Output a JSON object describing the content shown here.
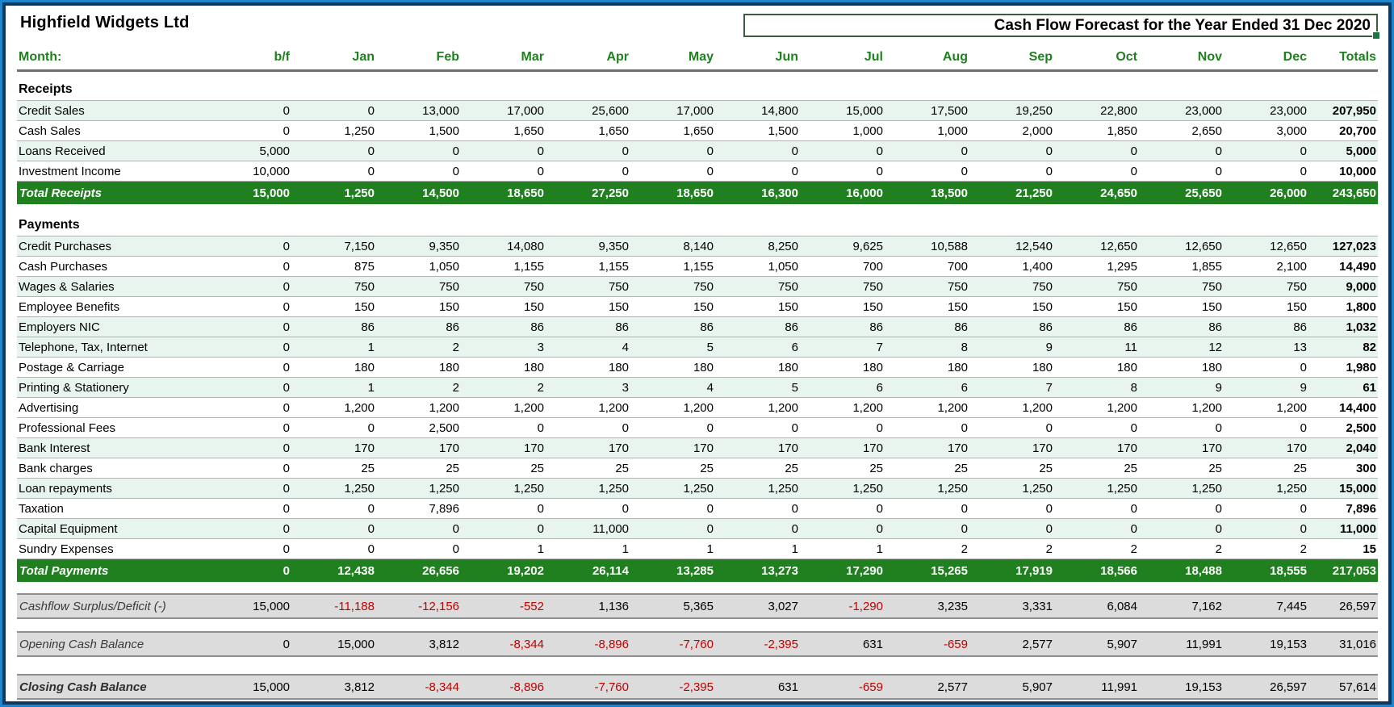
{
  "window": {
    "company": "Highfield Widgets Ltd",
    "report_title": "Cash Flow Forecast for the Year Ended 31 Dec 2020"
  },
  "colors": {
    "total_row_green": "#208020",
    "band_green": "#e8f5ef",
    "header_text_green": "#208020",
    "negative_red": "#c00000",
    "summary_gray": "#dcdcdc",
    "frame_outer_blue": "#1d86c8",
    "frame_inner_navy": "#11365f",
    "title_box_border": "#3d5c3d",
    "selection_handle_green": "#217346"
  },
  "table": {
    "month_label": "Month:",
    "columns": [
      "b/f",
      "Jan",
      "Feb",
      "Mar",
      "Apr",
      "May",
      "Jun",
      "Jul",
      "Aug",
      "Sep",
      "Oct",
      "Nov",
      "Dec",
      "Totals"
    ],
    "sections": [
      {
        "title": "Receipts",
        "rows": [
          {
            "label": "Credit Sales",
            "shaded": true,
            "values": [
              "0",
              "0",
              "13,000",
              "17,000",
              "25,600",
              "17,000",
              "14,800",
              "15,000",
              "17,500",
              "19,250",
              "22,800",
              "23,000",
              "23,000",
              "207,950"
            ]
          },
          {
            "label": "Cash Sales",
            "shaded": false,
            "values": [
              "0",
              "1,250",
              "1,500",
              "1,650",
              "1,650",
              "1,650",
              "1,500",
              "1,000",
              "1,000",
              "2,000",
              "1,850",
              "2,650",
              "3,000",
              "20,700"
            ]
          },
          {
            "label": "Loans Received",
            "shaded": true,
            "values": [
              "5,000",
              "0",
              "0",
              "0",
              "0",
              "0",
              "0",
              "0",
              "0",
              "0",
              "0",
              "0",
              "0",
              "5,000"
            ]
          },
          {
            "label": "Investment Income",
            "shaded": false,
            "values": [
              "10,000",
              "0",
              "0",
              "0",
              "0",
              "0",
              "0",
              "0",
              "0",
              "0",
              "0",
              "0",
              "0",
              "10,000"
            ]
          }
        ],
        "total": {
          "label": "Total Receipts",
          "values": [
            "15,000",
            "1,250",
            "14,500",
            "18,650",
            "27,250",
            "18,650",
            "16,300",
            "16,000",
            "18,500",
            "21,250",
            "24,650",
            "25,650",
            "26,000",
            "243,650"
          ]
        }
      },
      {
        "title": "Payments",
        "rows": [
          {
            "label": "Credit Purchases",
            "shaded": true,
            "values": [
              "0",
              "7,150",
              "9,350",
              "14,080",
              "9,350",
              "8,140",
              "8,250",
              "9,625",
              "10,588",
              "12,540",
              "12,650",
              "12,650",
              "12,650",
              "127,023"
            ]
          },
          {
            "label": "Cash Purchases",
            "shaded": false,
            "values": [
              "0",
              "875",
              "1,050",
              "1,155",
              "1,155",
              "1,155",
              "1,050",
              "700",
              "700",
              "1,400",
              "1,295",
              "1,855",
              "2,100",
              "14,490"
            ]
          },
          {
            "label": "Wages & Salaries",
            "shaded": true,
            "values": [
              "0",
              "750",
              "750",
              "750",
              "750",
              "750",
              "750",
              "750",
              "750",
              "750",
              "750",
              "750",
              "750",
              "9,000"
            ]
          },
          {
            "label": "Employee Benefits",
            "shaded": false,
            "values": [
              "0",
              "150",
              "150",
              "150",
              "150",
              "150",
              "150",
              "150",
              "150",
              "150",
              "150",
              "150",
              "150",
              "1,800"
            ]
          },
          {
            "label": "Employers NIC",
            "shaded": true,
            "values": [
              "0",
              "86",
              "86",
              "86",
              "86",
              "86",
              "86",
              "86",
              "86",
              "86",
              "86",
              "86",
              "86",
              "1,032"
            ]
          },
          {
            "label": "Telephone, Tax, Internet",
            "shaded": true,
            "values": [
              "0",
              "1",
              "2",
              "3",
              "4",
              "5",
              "6",
              "7",
              "8",
              "9",
              "11",
              "12",
              "13",
              "82"
            ]
          },
          {
            "label": "Postage & Carriage",
            "shaded": false,
            "values": [
              "0",
              "180",
              "180",
              "180",
              "180",
              "180",
              "180",
              "180",
              "180",
              "180",
              "180",
              "180",
              "0",
              "1,980"
            ]
          },
          {
            "label": "Printing & Stationery",
            "shaded": true,
            "values": [
              "0",
              "1",
              "2",
              "2",
              "3",
              "4",
              "5",
              "6",
              "6",
              "7",
              "8",
              "9",
              "9",
              "61"
            ]
          },
          {
            "label": "Advertising",
            "shaded": false,
            "values": [
              "0",
              "1,200",
              "1,200",
              "1,200",
              "1,200",
              "1,200",
              "1,200",
              "1,200",
              "1,200",
              "1,200",
              "1,200",
              "1,200",
              "1,200",
              "14,400"
            ]
          },
          {
            "label": "Professional Fees",
            "shaded": false,
            "values": [
              "0",
              "0",
              "2,500",
              "0",
              "0",
              "0",
              "0",
              "0",
              "0",
              "0",
              "0",
              "0",
              "0",
              "2,500"
            ]
          },
          {
            "label": "Bank Interest",
            "shaded": true,
            "values": [
              "0",
              "170",
              "170",
              "170",
              "170",
              "170",
              "170",
              "170",
              "170",
              "170",
              "170",
              "170",
              "170",
              "2,040"
            ]
          },
          {
            "label": "Bank charges",
            "shaded": false,
            "values": [
              "0",
              "25",
              "25",
              "25",
              "25",
              "25",
              "25",
              "25",
              "25",
              "25",
              "25",
              "25",
              "25",
              "300"
            ]
          },
          {
            "label": "Loan repayments",
            "shaded": true,
            "values": [
              "0",
              "1,250",
              "1,250",
              "1,250",
              "1,250",
              "1,250",
              "1,250",
              "1,250",
              "1,250",
              "1,250",
              "1,250",
              "1,250",
              "1,250",
              "15,000"
            ]
          },
          {
            "label": "Taxation",
            "shaded": false,
            "values": [
              "0",
              "0",
              "7,896",
              "0",
              "0",
              "0",
              "0",
              "0",
              "0",
              "0",
              "0",
              "0",
              "0",
              "7,896"
            ]
          },
          {
            "label": "Capital Equipment",
            "shaded": true,
            "values": [
              "0",
              "0",
              "0",
              "0",
              "11,000",
              "0",
              "0",
              "0",
              "0",
              "0",
              "0",
              "0",
              "0",
              "11,000"
            ]
          },
          {
            "label": "Sundry Expenses",
            "shaded": false,
            "values": [
              "0",
              "0",
              "0",
              "1",
              "1",
              "1",
              "1",
              "1",
              "2",
              "2",
              "2",
              "2",
              "2",
              "15"
            ]
          }
        ],
        "total": {
          "label": "Total Payments",
          "values": [
            "0",
            "12,438",
            "26,656",
            "19,202",
            "26,114",
            "13,285",
            "13,273",
            "17,290",
            "15,265",
            "17,919",
            "18,566",
            "18,488",
            "18,555",
            "217,053"
          ]
        }
      }
    ],
    "summary_rows": [
      {
        "label": "Cashflow Surplus/Deficit (-)",
        "bold": false,
        "values": [
          "15,000",
          "-11,188",
          "-12,156",
          "-552",
          "1,136",
          "5,365",
          "3,027",
          "-1,290",
          "3,235",
          "3,331",
          "6,084",
          "7,162",
          "7,445",
          "26,597"
        ]
      },
      {
        "label": "Opening Cash Balance",
        "bold": false,
        "values": [
          "0",
          "15,000",
          "3,812",
          "-8,344",
          "-8,896",
          "-7,760",
          "-2,395",
          "631",
          "-659",
          "2,577",
          "5,907",
          "11,991",
          "19,153",
          "31,016"
        ]
      },
      {
        "label": "Closing Cash Balance",
        "bold": true,
        "values": [
          "15,000",
          "3,812",
          "-8,344",
          "-8,896",
          "-7,760",
          "-2,395",
          "631",
          "-659",
          "2,577",
          "5,907",
          "11,991",
          "19,153",
          "26,597",
          "57,614"
        ]
      }
    ]
  }
}
